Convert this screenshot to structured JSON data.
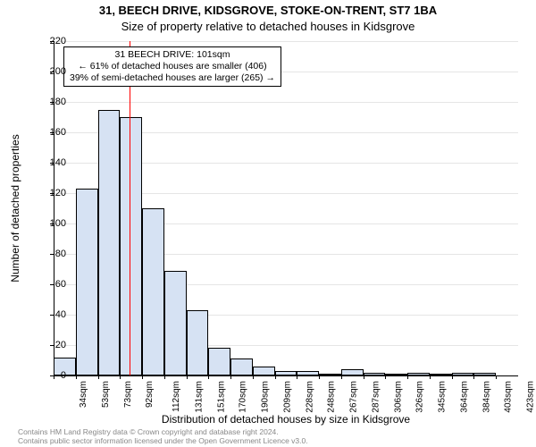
{
  "title_main": "31, BEECH DRIVE, KIDSGROVE, STOKE-ON-TRENT, ST7 1BA",
  "title_sub": "Size of property relative to detached houses in Kidsgrove",
  "ylabel": "Number of detached properties",
  "xlabel": "Distribution of detached houses by size in Kidsgrove",
  "footer_line1": "Contains HM Land Registry data © Crown copyright and database right 2024.",
  "footer_line2": "Contains public sector information licensed under the Open Government Licence v3.0.",
  "chart": {
    "type": "histogram",
    "plot_bg": "#ffffff",
    "bar_fill": "#d6e2f3",
    "bar_stroke": "#000000",
    "grid_color": "#e5e5e5",
    "axis_color": "#000000",
    "vline_color": "#ff0000",
    "ylim": [
      0,
      220
    ],
    "ytick_step": 20,
    "yticks": [
      0,
      20,
      40,
      60,
      80,
      100,
      120,
      140,
      160,
      180,
      200,
      220
    ],
    "x_tick_labels": [
      "34sqm",
      "53sqm",
      "73sqm",
      "92sqm",
      "112sqm",
      "131sqm",
      "151sqm",
      "170sqm",
      "190sqm",
      "209sqm",
      "228sqm",
      "248sqm",
      "267sqm",
      "287sqm",
      "306sqm",
      "326sqm",
      "345sqm",
      "364sqm",
      "384sqm",
      "403sqm",
      "423sqm"
    ],
    "bar_values": [
      12,
      123,
      175,
      170,
      110,
      69,
      43,
      18,
      11,
      6,
      3,
      3,
      1,
      4,
      2,
      1,
      2,
      1,
      2,
      2,
      0
    ],
    "vline_x_value": 101,
    "x_domain": [
      34,
      442
    ],
    "bar_width_ratio": 1.0
  },
  "annotation": {
    "line1": "31 BEECH DRIVE: 101sqm",
    "line2": "← 61% of detached houses are smaller (406)",
    "line3": "39% of semi-detached houses are larger (265) →"
  },
  "style": {
    "title_fontsize": 13,
    "axis_label_fontsize": 12,
    "tick_fontsize": 11,
    "xtick_fontsize": 10,
    "anno_fontsize": 10.5,
    "footer_fontsize": 8.5,
    "footer_color": "#888888"
  }
}
